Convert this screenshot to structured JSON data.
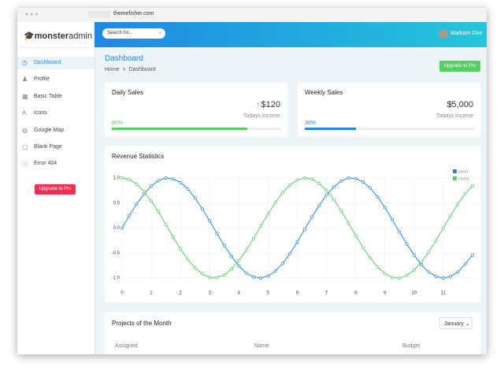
{
  "browser": {
    "url": "themefisher.com"
  },
  "header": {
    "logo_bold": "monster",
    "logo_light": "admin",
    "search_placeholder": "Search for...",
    "user": "Markarn Doe"
  },
  "sidebar": {
    "items": [
      "Dashboard",
      "Profile",
      "Basic Table",
      "Icons",
      "Google Map",
      "Blank Page",
      "Error 404"
    ],
    "button": "Upgrade to Pro"
  },
  "page": {
    "title": "Dashboard",
    "breadcrumb": [
      "Home",
      "Dashboard"
    ],
    "button": "Upgrade to Pro"
  },
  "cards": [
    {
      "title": "Daily Sales",
      "amount": "$120",
      "subtitle": "Todays Income",
      "progress": 80,
      "progress_label": "80%",
      "color": "#55ce63"
    },
    {
      "title": "Weekly Sales",
      "amount": "$5,000",
      "subtitle": "Todays Income",
      "progress": 30,
      "progress_label": "30%",
      "color": "#1e88e5"
    }
  ],
  "chart_data": {
    "type": "line",
    "title": "Revenue Statistics",
    "x": [
      0,
      0.25,
      0.5,
      0.75,
      1,
      1.25,
      1.5,
      1.75,
      2,
      2.25,
      2.5,
      2.75,
      3,
      3.25,
      3.5,
      3.75,
      4,
      4.25,
      4.5,
      4.75,
      5,
      5.25,
      5.5,
      5.75,
      6,
      6.25,
      6.5,
      6.75,
      7,
      7.25,
      7.5,
      7.75,
      8,
      8.25,
      8.5,
      8.75,
      9,
      9.25,
      9.5,
      9.75,
      10,
      10.25,
      10.5,
      10.75,
      11,
      11.25,
      11.5,
      11.75,
      12
    ],
    "series": [
      {
        "name": "sin(x)",
        "color": "#1e88e5",
        "values": [
          0,
          0.25,
          0.48,
          0.68,
          0.84,
          0.95,
          1,
          0.98,
          0.91,
          0.78,
          0.6,
          0.38,
          0.14,
          -0.11,
          -0.35,
          -0.57,
          -0.76,
          -0.9,
          -0.98,
          -1,
          -0.96,
          -0.86,
          -0.71,
          -0.51,
          -0.28,
          -0.03,
          0.22,
          0.45,
          0.66,
          0.82,
          0.94,
          1,
          0.99,
          0.92,
          0.8,
          0.62,
          0.41,
          0.17,
          -0.08,
          -0.32,
          -0.54,
          -0.74,
          -0.88,
          -0.97,
          -1,
          -0.97,
          -0.88,
          -0.72,
          -0.54
        ]
      },
      {
        "name": "cos(x)",
        "color": "#55ce63",
        "values": [
          1,
          0.97,
          0.88,
          0.73,
          0.54,
          0.32,
          0.07,
          -0.18,
          -0.42,
          -0.63,
          -0.8,
          -0.92,
          -0.99,
          -0.99,
          -0.94,
          -0.82,
          -0.65,
          -0.45,
          -0.21,
          0.04,
          0.28,
          0.51,
          0.71,
          0.86,
          0.96,
          1,
          0.98,
          0.89,
          0.75,
          0.57,
          0.35,
          0.1,
          -0.15,
          -0.39,
          -0.6,
          -0.78,
          -0.91,
          -0.99,
          -1,
          -0.95,
          -0.84,
          -0.68,
          -0.48,
          -0.25,
          0,
          0.25,
          0.48,
          0.69,
          0.84
        ]
      }
    ],
    "xlim": [
      0,
      12
    ],
    "xticks": [
      0,
      1,
      2,
      3,
      4,
      5,
      6,
      7,
      8,
      9,
      10,
      11
    ],
    "ylim": [
      -1,
      1
    ],
    "yticks": [
      {
        "value": 1,
        "label": "1.0"
      },
      0.5,
      {
        "value": 0,
        "label": "0.0"
      },
      -0.5,
      {
        "value": -1,
        "label": "-1.0"
      }
    ],
    "grid": true
  },
  "projects": {
    "title": "Projects of the Month",
    "month": "January",
    "columns": [
      "Assigned",
      "Name",
      "Budget"
    ]
  }
}
